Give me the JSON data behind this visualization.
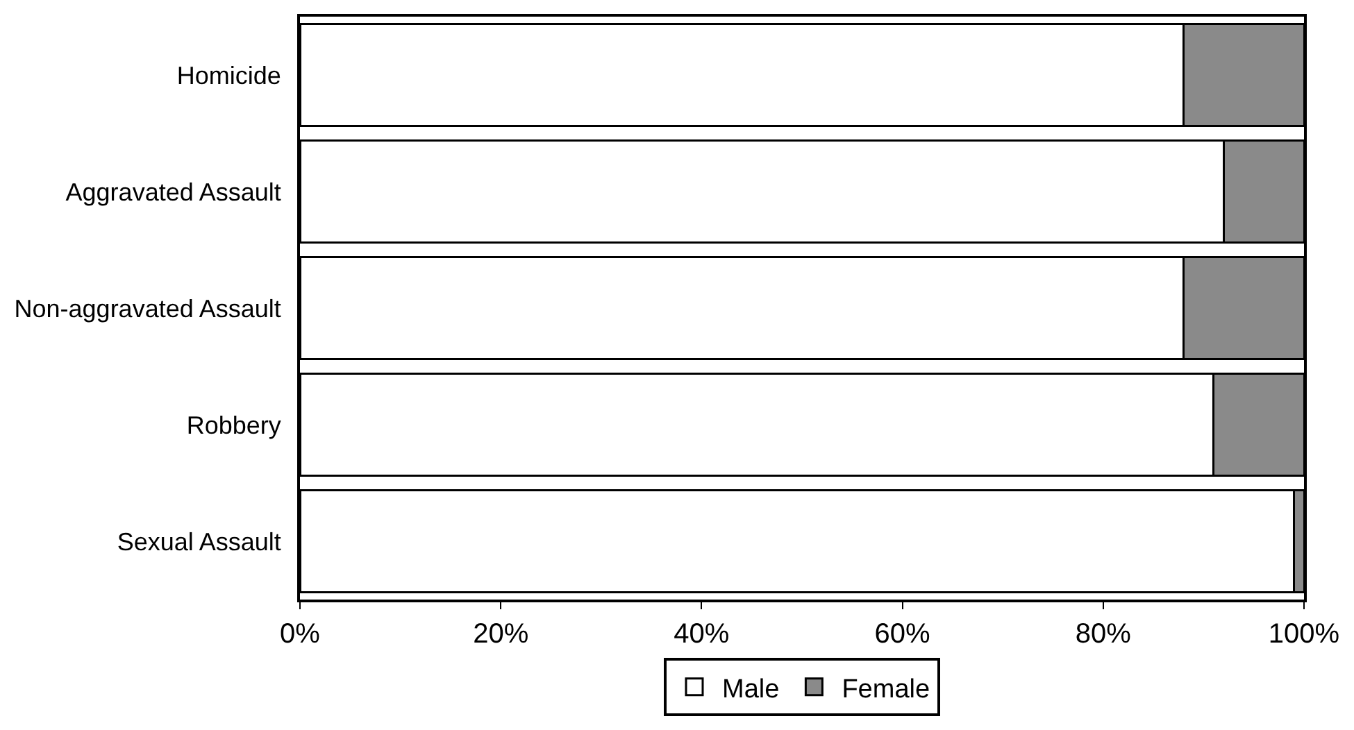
{
  "chart_data": {
    "type": "bar",
    "orientation": "horizontal",
    "stacked": true,
    "categories": [
      "Homicide",
      "Aggravated Assault",
      "Non-aggravated Assault",
      "Robbery",
      "Sexual Assault"
    ],
    "series": [
      {
        "name": "Male",
        "color": "#ffffff",
        "values": [
          88,
          92,
          88,
          91,
          99
        ]
      },
      {
        "name": "Female",
        "color": "#8a8a8a",
        "values": [
          12,
          8,
          12,
          9,
          1
        ]
      }
    ],
    "xlim": [
      0,
      100
    ],
    "xticks": [
      {
        "value": 0,
        "label": "0%"
      },
      {
        "value": 20,
        "label": "20%"
      },
      {
        "value": 40,
        "label": "40%"
      },
      {
        "value": 60,
        "label": "60%"
      },
      {
        "value": 80,
        "label": "80%"
      },
      {
        "value": 100,
        "label": "100%"
      }
    ],
    "grid": false,
    "legend": "bottom"
  }
}
